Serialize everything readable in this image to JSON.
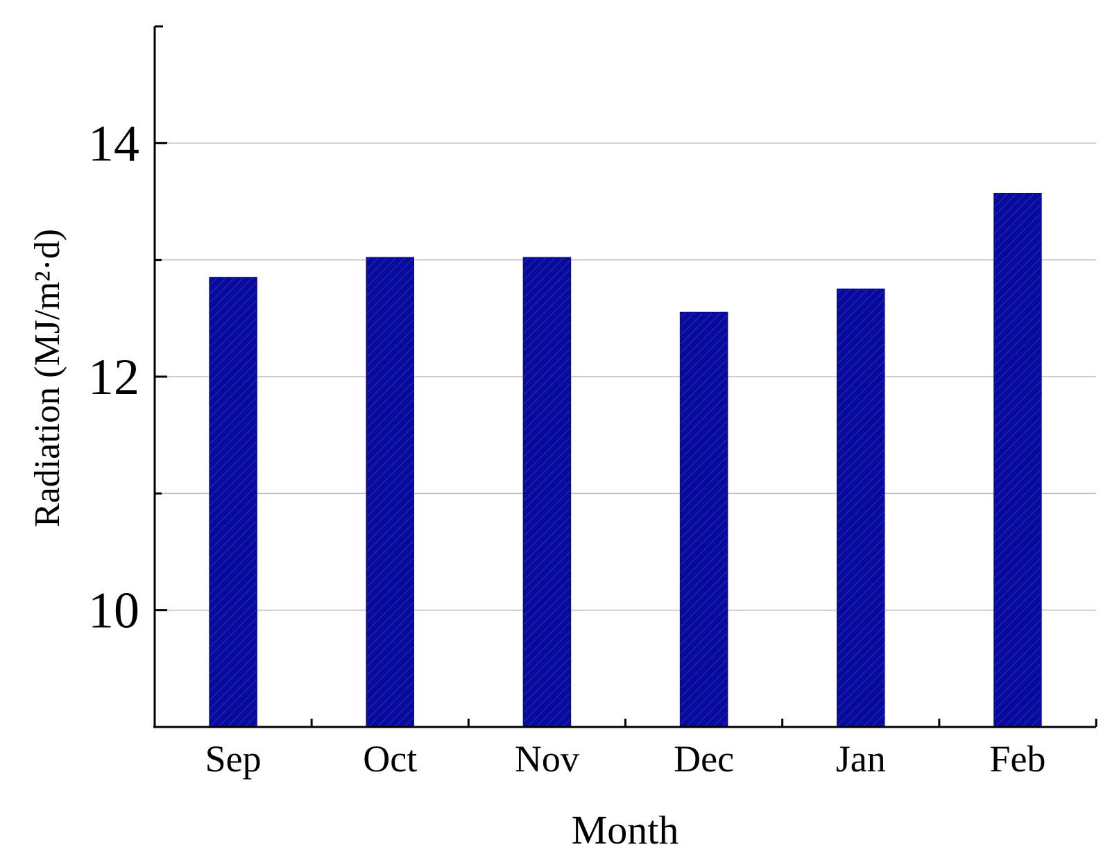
{
  "chart_data": {
    "type": "bar",
    "categories": [
      "Sep",
      "Oct",
      "Nov",
      "Dec",
      "Jan",
      "Feb"
    ],
    "values": [
      12.85,
      13.02,
      13.02,
      12.55,
      12.75,
      13.57
    ],
    "xlabel": "Month",
    "ylabel": "Radiation (MJ/m²·d)",
    "ylim": [
      9.0,
      15.0
    ],
    "yticks": [
      10,
      12,
      14
    ],
    "ytick_labels": [
      "10",
      "12",
      "14"
    ],
    "grid": true,
    "bar_color": "#0a0a9a",
    "hatch_color": "#1e30c8",
    "gridline_color": "#bdbdbd"
  }
}
